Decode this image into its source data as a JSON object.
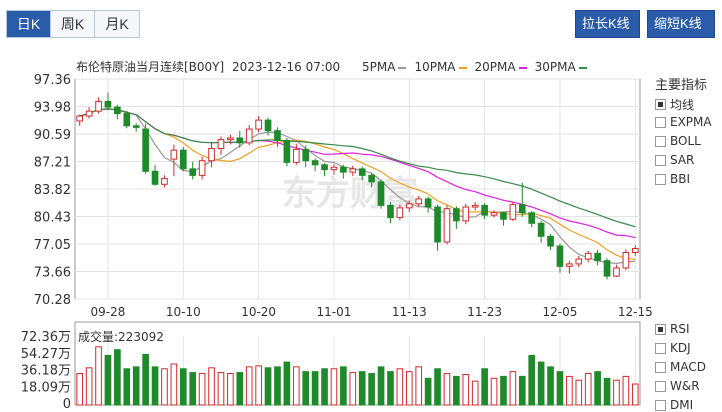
{
  "tabs": [
    {
      "label": "日K",
      "active": true
    },
    {
      "label": "周K",
      "active": false
    },
    {
      "label": "月K",
      "active": false
    }
  ],
  "buttons": {
    "stretch": "拉长K线",
    "shorten": "缩短K线"
  },
  "chart_title": "布伦特原油当月连续[B00Y]",
  "datetime": "2023-12-16 07:00",
  "ma_legend": [
    {
      "label": "5PMA",
      "color": "#999999"
    },
    {
      "label": "10PMA",
      "color": "#f0a020"
    },
    {
      "label": "20PMA",
      "color": "#e020e0"
    },
    {
      "label": "30PMA",
      "color": "#3a8a4a"
    }
  ],
  "side_panel": {
    "title": "主要指标",
    "main_options": [
      {
        "label": "均线",
        "checked": true
      },
      {
        "label": "EXPMA",
        "checked": false
      },
      {
        "label": "BOLL",
        "checked": false
      },
      {
        "label": "SAR",
        "checked": false
      },
      {
        "label": "BBI",
        "checked": false
      }
    ],
    "sub_options": [
      {
        "label": "RSI",
        "checked": true
      },
      {
        "label": "KDJ",
        "checked": false
      },
      {
        "label": "MACD",
        "checked": false
      },
      {
        "label": "W&R",
        "checked": false
      },
      {
        "label": "DMI",
        "checked": false
      }
    ]
  },
  "volume_label": "成交量:223092",
  "watermark": "东方财富",
  "colors": {
    "up": "#d42a2a",
    "down": "#1f8a2a",
    "accent": "#2a5caa"
  },
  "chart_data": {
    "type": "candlestick",
    "y_ticks": [
      "97.36",
      "93.98",
      "90.59",
      "87.21",
      "83.82",
      "80.43",
      "77.05",
      "73.66",
      "70.28"
    ],
    "ylim": [
      70.28,
      97.36
    ],
    "x_tick_labels": [
      "09-28",
      "10-10",
      "10-20",
      "11-01",
      "11-13",
      "11-23",
      "12-05",
      "12-15"
    ],
    "x_tick_index": [
      3,
      11,
      19,
      27,
      35,
      43,
      51,
      59
    ],
    "candles": [
      [
        92.2,
        92.8,
        91.6,
        93.0
      ],
      [
        92.8,
        93.4,
        92.5,
        93.9
      ],
      [
        93.4,
        94.6,
        93.1,
        95.1
      ],
      [
        94.6,
        93.9,
        93.5,
        95.7
      ],
      [
        93.9,
        93.1,
        92.4,
        94.2
      ],
      [
        93.1,
        91.6,
        91.3,
        93.4
      ],
      [
        91.6,
        91.4,
        90.9,
        91.9
      ],
      [
        91.2,
        86.0,
        85.7,
        91.9
      ],
      [
        86.0,
        84.4,
        84.2,
        86.8
      ],
      [
        84.4,
        85.1,
        84.0,
        85.5
      ],
      [
        87.5,
        88.6,
        85.4,
        89.3
      ],
      [
        88.6,
        86.3,
        86.0,
        89.0
      ],
      [
        86.3,
        85.5,
        85.0,
        87.2
      ],
      [
        85.5,
        87.3,
        85.0,
        87.8
      ],
      [
        87.3,
        88.8,
        86.5,
        89.5
      ],
      [
        88.8,
        89.9,
        88.0,
        90.3
      ],
      [
        89.9,
        90.1,
        89.3,
        90.5
      ],
      [
        90.1,
        89.5,
        88.9,
        91.0
      ],
      [
        89.5,
        91.2,
        89.2,
        91.7
      ],
      [
        91.2,
        92.3,
        90.8,
        92.8
      ],
      [
        92.3,
        91.0,
        90.4,
        92.6
      ],
      [
        91.0,
        89.8,
        89.0,
        91.4
      ],
      [
        89.8,
        87.1,
        86.6,
        90.1
      ],
      [
        87.1,
        88.7,
        86.8,
        89.4
      ],
      [
        88.7,
        87.3,
        86.5,
        89.2
      ],
      [
        87.3,
        86.8,
        86.0,
        87.6
      ],
      [
        86.8,
        86.2,
        85.4,
        87.0
      ],
      [
        86.2,
        86.5,
        85.6,
        86.9
      ],
      [
        86.5,
        85.9,
        85.1,
        86.8
      ],
      [
        85.9,
        86.3,
        85.4,
        86.7
      ],
      [
        86.3,
        85.5,
        84.9,
        86.6
      ],
      [
        85.5,
        84.7,
        84.0,
        85.8
      ],
      [
        84.7,
        81.8,
        81.4,
        85.0
      ],
      [
        81.8,
        80.3,
        79.6,
        82.2
      ],
      [
        80.3,
        81.5,
        80.0,
        81.9
      ],
      [
        81.5,
        82.0,
        81.0,
        82.4
      ],
      [
        82.0,
        82.6,
        81.6,
        83.0
      ],
      [
        82.6,
        81.6,
        80.9,
        82.9
      ],
      [
        81.6,
        77.3,
        76.2,
        81.9
      ],
      [
        77.3,
        81.4,
        77.0,
        81.8
      ],
      [
        81.4,
        79.9,
        78.9,
        81.7
      ],
      [
        79.9,
        81.6,
        79.5,
        82.0
      ],
      [
        81.6,
        81.8,
        81.2,
        82.2
      ],
      [
        81.8,
        80.6,
        80.1,
        82.1
      ],
      [
        80.6,
        80.9,
        80.3,
        81.2
      ],
      [
        80.9,
        80.1,
        79.3,
        81.0
      ],
      [
        80.1,
        81.9,
        79.9,
        82.2
      ],
      [
        81.9,
        80.9,
        80.4,
        84.6
      ],
      [
        80.9,
        79.6,
        79.1,
        81.1
      ],
      [
        79.6,
        78.0,
        77.2,
        79.9
      ],
      [
        78.0,
        76.8,
        76.3,
        78.3
      ],
      [
        76.8,
        74.3,
        73.5,
        77.1
      ],
      [
        74.3,
        74.6,
        73.4,
        75.0
      ],
      [
        74.6,
        75.2,
        74.2,
        75.6
      ],
      [
        75.2,
        75.9,
        74.8,
        76.2
      ],
      [
        75.9,
        75.0,
        74.4,
        76.3
      ],
      [
        75.0,
        73.1,
        72.7,
        75.3
      ],
      [
        73.1,
        74.1,
        73.0,
        74.5
      ],
      [
        74.1,
        76.0,
        73.8,
        76.4
      ],
      [
        76.0,
        76.5,
        75.6,
        76.9
      ]
    ],
    "volume_ticks": [
      "72.36万",
      "54.27万",
      "36.18万",
      "18.09万",
      "0"
    ],
    "volume_max": 72.36,
    "volumes": [
      33,
      39,
      61,
      52,
      58,
      38,
      40,
      53,
      40,
      38,
      43,
      38,
      34,
      33,
      39,
      34,
      33,
      34,
      40,
      41,
      39,
      40,
      45,
      40,
      35,
      35,
      38,
      38,
      40,
      34,
      35,
      33,
      40,
      35,
      38,
      35,
      40,
      28,
      38,
      33,
      30,
      32,
      25,
      38,
      28,
      30,
      35,
      30,
      52,
      45,
      40,
      35,
      30,
      26,
      33,
      35,
      28,
      26,
      30,
      22
    ]
  }
}
